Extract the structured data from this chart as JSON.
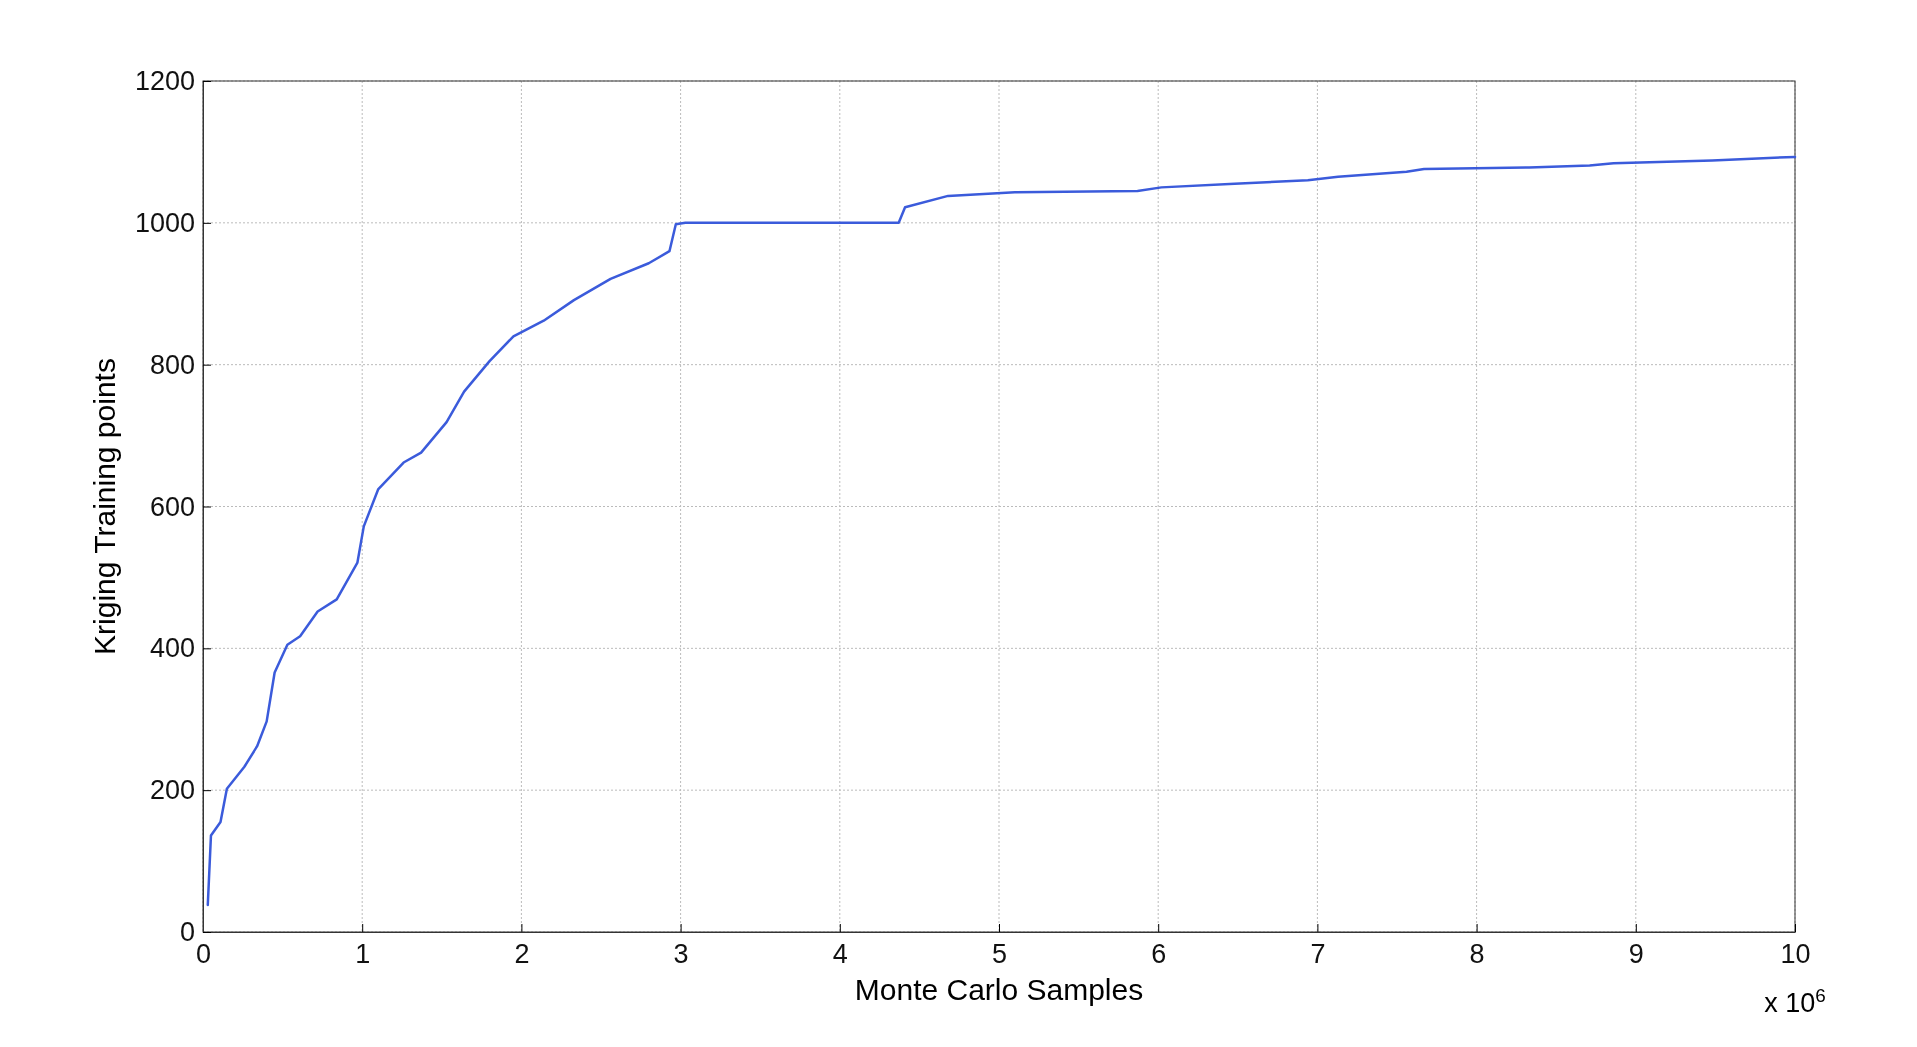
{
  "chart_data": {
    "type": "line",
    "xlabel": "Monte Carlo Samples",
    "ylabel": "Kriging Training points",
    "x": [
      0.03,
      0.05,
      0.11,
      0.15,
      0.26,
      0.34,
      0.4,
      0.45,
      0.53,
      0.61,
      0.72,
      0.84,
      0.97,
      1.01,
      1.1,
      1.26,
      1.37,
      1.53,
      1.64,
      1.8,
      1.95,
      2.14,
      2.33,
      2.56,
      2.8,
      2.93,
      2.97,
      3.03,
      4.37,
      4.41,
      4.68,
      5.1,
      5.87,
      6.02,
      6.48,
      6.94,
      7.13,
      7.56,
      7.67,
      8.33,
      8.71,
      8.86,
      9.48,
      10
    ],
    "series": [
      {
        "color": "#3b5bdb",
        "values": [
          38,
          136,
          155,
          202,
          233,
          262,
          297,
          366,
          405,
          417,
          452,
          469,
          521,
          572,
          624,
          662,
          676,
          719,
          762,
          805,
          840,
          862,
          891,
          921,
          943,
          960,
          998,
          1000,
          1000,
          1022,
          1038,
          1043,
          1045,
          1050,
          1055,
          1060,
          1065,
          1072,
          1076,
          1078,
          1081,
          1084,
          1088,
          1093
        ]
      }
    ],
    "xlim": [
      0,
      10
    ],
    "xticks": [
      0,
      1,
      2,
      3,
      4,
      5,
      6,
      7,
      8,
      9,
      10
    ],
    "ylim": [
      0,
      1200
    ],
    "yticks": [
      0,
      200,
      400,
      600,
      800,
      1000,
      1200
    ],
    "grid": true,
    "marker": "none",
    "line_style": "solid",
    "annotations": [
      "x 10$^{6}$"
    ]
  }
}
